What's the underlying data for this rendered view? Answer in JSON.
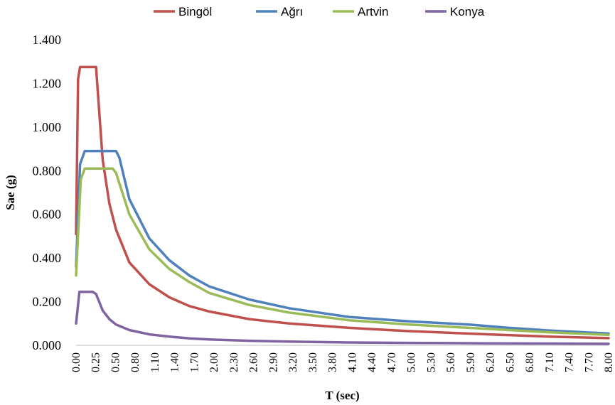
{
  "chart_data": {
    "type": "line",
    "xlabel": "T (sec)",
    "ylabel": "Sae (g)",
    "xlim": [
      0,
      8
    ],
    "ylim": [
      0,
      1.4
    ],
    "yticks": [
      "0.000",
      "0.200",
      "0.400",
      "0.600",
      "0.800",
      "1.000",
      "1.200",
      "1.400"
    ],
    "xticks": [
      "0.00",
      "0.25",
      "0.50",
      "0.80",
      "1.10",
      "1.40",
      "1.70",
      "2.00",
      "2.30",
      "2.60",
      "2.90",
      "3.20",
      "3.50",
      "3.80",
      "4.10",
      "4.40",
      "4.70",
      "5.00",
      "5.30",
      "5.60",
      "5.90",
      "6.20",
      "6.50",
      "6.80",
      "7.10",
      "7.40",
      "7.70",
      "8.00"
    ],
    "grid": false,
    "legend_position": "top",
    "series": [
      {
        "name": "Bingöl",
        "color": "#c0504d",
        "points": [
          [
            0,
            0.51
          ],
          [
            0.03,
            1.22
          ],
          [
            0.06,
            1.275
          ],
          [
            0.3,
            1.275
          ],
          [
            0.4,
            0.85
          ],
          [
            0.5,
            0.65
          ],
          [
            0.6,
            0.53
          ],
          [
            0.8,
            0.38
          ],
          [
            1.1,
            0.28
          ],
          [
            1.4,
            0.22
          ],
          [
            1.7,
            0.18
          ],
          [
            2.0,
            0.155
          ],
          [
            2.6,
            0.12
          ],
          [
            3.2,
            0.1
          ],
          [
            4.1,
            0.08
          ],
          [
            5.0,
            0.065
          ],
          [
            6.2,
            0.05
          ],
          [
            7.1,
            0.04
          ],
          [
            8.0,
            0.033
          ]
        ]
      },
      {
        "name": "Ağrı",
        "color": "#4f81bd",
        "points": [
          [
            0,
            0.36
          ],
          [
            0.06,
            0.83
          ],
          [
            0.13,
            0.89
          ],
          [
            0.6,
            0.89
          ],
          [
            0.65,
            0.86
          ],
          [
            0.8,
            0.67
          ],
          [
            1.1,
            0.49
          ],
          [
            1.4,
            0.39
          ],
          [
            1.7,
            0.32
          ],
          [
            2.0,
            0.27
          ],
          [
            2.6,
            0.21
          ],
          [
            3.2,
            0.17
          ],
          [
            4.1,
            0.13
          ],
          [
            5.0,
            0.11
          ],
          [
            5.9,
            0.095
          ],
          [
            6.5,
            0.08
          ],
          [
            7.1,
            0.068
          ],
          [
            8.0,
            0.054
          ]
        ]
      },
      {
        "name": "Artvin",
        "color": "#9bbb59",
        "points": [
          [
            0,
            0.32
          ],
          [
            0.07,
            0.76
          ],
          [
            0.13,
            0.81
          ],
          [
            0.55,
            0.81
          ],
          [
            0.6,
            0.79
          ],
          [
            0.8,
            0.6
          ],
          [
            1.1,
            0.44
          ],
          [
            1.4,
            0.35
          ],
          [
            1.7,
            0.29
          ],
          [
            2.0,
            0.24
          ],
          [
            2.6,
            0.185
          ],
          [
            3.2,
            0.15
          ],
          [
            4.1,
            0.115
          ],
          [
            5.0,
            0.095
          ],
          [
            5.9,
            0.08
          ],
          [
            6.5,
            0.07
          ],
          [
            7.1,
            0.06
          ],
          [
            8.0,
            0.048
          ]
        ]
      },
      {
        "name": "Konya",
        "color": "#8064a2",
        "points": [
          [
            0,
            0.1
          ],
          [
            0.05,
            0.245
          ],
          [
            0.25,
            0.245
          ],
          [
            0.3,
            0.235
          ],
          [
            0.4,
            0.16
          ],
          [
            0.5,
            0.12
          ],
          [
            0.6,
            0.095
          ],
          [
            0.8,
            0.07
          ],
          [
            1.1,
            0.05
          ],
          [
            1.4,
            0.04
          ],
          [
            1.7,
            0.032
          ],
          [
            2.0,
            0.027
          ],
          [
            2.6,
            0.021
          ],
          [
            3.2,
            0.017
          ],
          [
            4.1,
            0.013
          ],
          [
            5.0,
            0.011
          ],
          [
            6.2,
            0.009
          ],
          [
            7.1,
            0.008
          ],
          [
            8.0,
            0.007
          ]
        ]
      }
    ]
  }
}
